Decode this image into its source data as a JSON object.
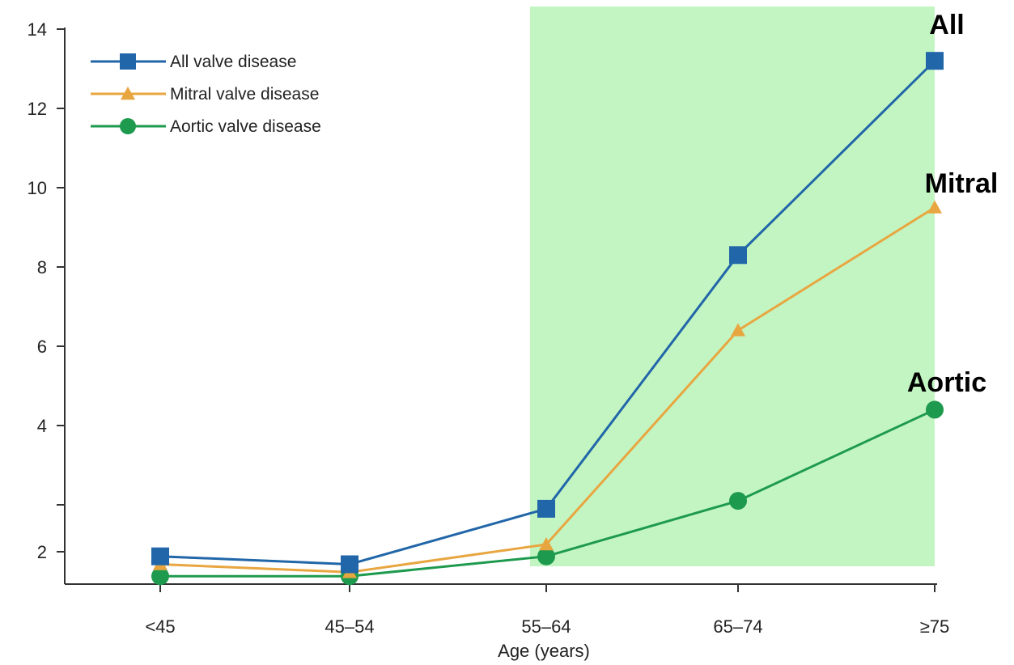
{
  "chart_data": {
    "type": "line",
    "title": "",
    "xlabel": "Age (years)",
    "ylabel": "",
    "categories": [
      "<45",
      "45–54",
      "55–64",
      "65–74",
      "≥75"
    ],
    "ylim": [
      0,
      14
    ],
    "y_tick_labels": [
      "2",
      "",
      "4",
      "6",
      "8",
      "10",
      "12",
      "14"
    ],
    "grid": false,
    "legend_position": "top-left",
    "highlight": {
      "from_category": "55–64",
      "to_category": "≥75",
      "color": "#c3f5c3"
    },
    "series": [
      {
        "name": "All valve disease",
        "values": [
          0.7,
          0.5,
          1.9,
          8.3,
          13.2
        ],
        "color": "#2166a8",
        "marker": "square"
      },
      {
        "name": "Mitral valve disease",
        "values": [
          0.5,
          0.3,
          1.0,
          6.4,
          9.5
        ],
        "color": "#e8a640",
        "marker": "triangle"
      },
      {
        "name": "Aortic valve disease",
        "values": [
          0.2,
          0.2,
          0.7,
          2.1,
          4.4
        ],
        "color": "#1e9a4e",
        "marker": "circle"
      }
    ],
    "annotations": [
      "All",
      "Mitral",
      "Aortic"
    ]
  }
}
